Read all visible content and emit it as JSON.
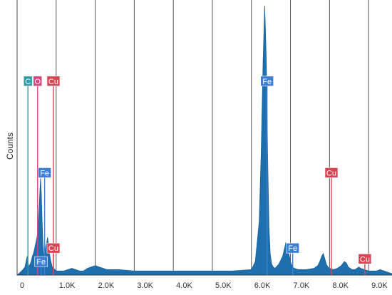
{
  "chart_data": {
    "type": "area",
    "title": "",
    "xlabel": "",
    "ylabel": "Counts",
    "xlim": [
      0,
      9600
    ],
    "ylim": [
      0,
      100
    ],
    "grid": "vertical",
    "series_color": "#1E6FAE",
    "xticks": [
      {
        "value": 0,
        "label": "0"
      },
      {
        "value": 1000,
        "label": "1.0K"
      },
      {
        "value": 2000,
        "label": "2.0K"
      },
      {
        "value": 3000,
        "label": "3.0K"
      },
      {
        "value": 4000,
        "label": "4.0K"
      },
      {
        "value": 5000,
        "label": "5.0K"
      },
      {
        "value": 6000,
        "label": "6.0K"
      },
      {
        "value": 7000,
        "label": "7.0K"
      },
      {
        "value": 8000,
        "label": "8.0K"
      },
      {
        "value": 9000,
        "label": "9.0K"
      }
    ],
    "series": [
      {
        "x": [
          0,
          80,
          150,
          200,
          230,
          260,
          280,
          300,
          330,
          360,
          390,
          420,
          450,
          480,
          510,
          540,
          560,
          580,
          600,
          620,
          640,
          660,
          680,
          700,
          720,
          740,
          760,
          780,
          800,
          820,
          850,
          900,
          1000,
          1200,
          1400,
          1500,
          1600,
          1700,
          1800,
          2000,
          2300,
          2600,
          3000,
          3500,
          4000,
          4500,
          5000,
          5500,
          6000,
          6100,
          6200,
          6250,
          6300,
          6340,
          6380,
          6420,
          6450,
          6480,
          6520,
          6560,
          6600,
          6700,
          6800,
          6850,
          6880,
          6920,
          6960,
          7000,
          7050,
          7100,
          7200,
          7400,
          7600,
          7700,
          7750,
          7800,
          7840,
          7880,
          7920,
          7960,
          8000,
          8100,
          8200,
          8300,
          8380,
          8430,
          8480,
          8530,
          8580,
          8650,
          8700,
          8750,
          8800,
          8900,
          9000,
          9100,
          9200,
          9300,
          9400,
          9500,
          9600
        ],
        "y": [
          0,
          1,
          2,
          3,
          5,
          7,
          5,
          3,
          4,
          5,
          7,
          8,
          10,
          12,
          14,
          18,
          24,
          30,
          36,
          30,
          20,
          12,
          8,
          7,
          9,
          11,
          12,
          14,
          12,
          9,
          6,
          3,
          1.5,
          1.5,
          2.5,
          2,
          1.5,
          1.5,
          2.5,
          3.5,
          2,
          2,
          1.5,
          1.5,
          1.5,
          1.5,
          1.5,
          1.5,
          2,
          5,
          20,
          45,
          80,
          100,
          80,
          40,
          18,
          8,
          4,
          3,
          2.5,
          4,
          7,
          10,
          12,
          11,
          8,
          5,
          3,
          2.5,
          2,
          2,
          2.5,
          3.5,
          5,
          7,
          8,
          6,
          4,
          3,
          2.5,
          2,
          2.5,
          3.5,
          5,
          4.5,
          3,
          2.5,
          2,
          2,
          2.5,
          3,
          2.5,
          2,
          1.5,
          1.5,
          1.5,
          2,
          1.5,
          1,
          0.5
        ]
      }
    ],
    "markers": [
      {
        "label": "C",
        "x": 277,
        "y_top": 72,
        "color": "#2E9BA8"
      },
      {
        "label": "O",
        "x": 525,
        "y_top": 72,
        "color": "#D9447F"
      },
      {
        "label": "Cu",
        "x": 930,
        "y_top": 72,
        "color": "#D94452"
      },
      {
        "label": "Fe",
        "x": 705,
        "y_top": 38,
        "color": "#3D7FD4"
      },
      {
        "label": "Cu",
        "x": 930,
        "y_top": 10,
        "color": "#D94452"
      },
      {
        "label": "Fe",
        "x": 615,
        "y_top": 5,
        "color": "#3D7FD4"
      },
      {
        "label": "Fe",
        "x": 6400,
        "y_top": 72,
        "color": "#3D7FD4"
      },
      {
        "label": "Fe",
        "x": 7058,
        "y_top": 10,
        "color": "#3D7FD4"
      },
      {
        "label": "Cu",
        "x": 8048,
        "y_top": 38,
        "color": "#D94452"
      },
      {
        "label": "Cu",
        "x": 8905,
        "y_top": 6,
        "color": "#D94452"
      }
    ]
  }
}
